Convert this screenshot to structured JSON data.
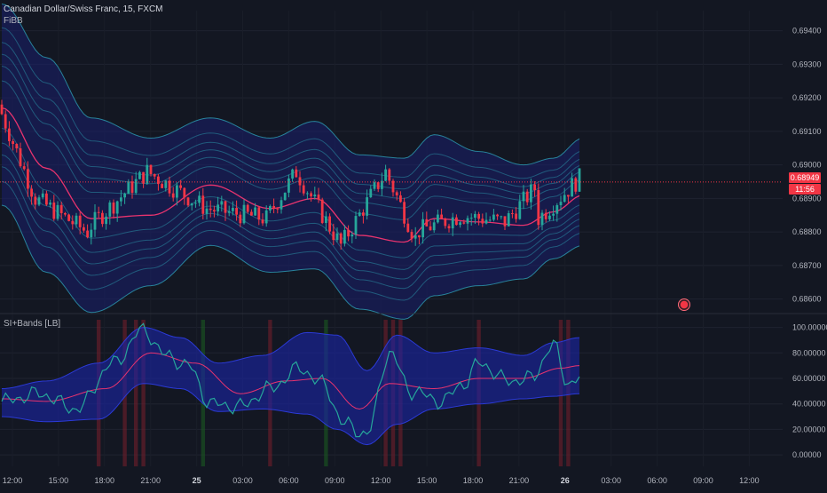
{
  "header": {
    "title": "Canadian Dollar/Swiss Franc, 15, FXCM",
    "indicator": "FiBB"
  },
  "oscillator": {
    "label": "SI+Bands [LB]"
  },
  "price_labels": {
    "last": "0.68949",
    "countdown": "11:56"
  },
  "colors": {
    "background": "#131722",
    "up": "#26a69a",
    "down": "#f23645",
    "band_line": "#2a8ea6",
    "basis": "#e8336e",
    "band_fill": "#1a1f6e",
    "osc_line": "#26a69a",
    "osc_ma": "#e8336e",
    "osc_band_fill": "#1a25a8"
  },
  "chart_data": [
    {
      "type": "candlestick",
      "title": "Canadian Dollar/Swiss Franc, 15, FXCM",
      "x_ticks": [
        "12:00",
        "15:00",
        "18:00",
        "21:00",
        "25",
        "03:00",
        "06:00",
        "09:00",
        "12:00",
        "15:00",
        "18:00",
        "21:00",
        "26",
        "03:00",
        "06:00",
        "09:00",
        "12:00"
      ],
      "y_ticks": [
        "0.69400",
        "0.69300",
        "0.69200",
        "0.69100",
        "0.69000",
        "0.68900",
        "0.68800",
        "0.68700",
        "0.68600"
      ],
      "ylim": [
        0.6857,
        0.6946
      ],
      "last_price": 0.68949,
      "fib_bands": {
        "anchors_x": [
          0,
          12,
          24,
          40,
          56,
          72,
          84,
          96,
          108,
          116,
          128,
          140,
          148,
          156
        ],
        "basis": [
          0.6918,
          0.69,
          0.6885,
          0.6886,
          0.6895,
          0.6888,
          0.6891,
          0.688,
          0.6878,
          0.6885,
          0.6884,
          0.6883,
          0.6887,
          0.6892
        ],
        "half_width": [
          0.003,
          0.0032,
          0.0029,
          0.0022,
          0.0019,
          0.002,
          0.0022,
          0.0023,
          0.0024,
          0.0024,
          0.002,
          0.0017,
          0.0015,
          0.0016
        ]
      },
      "segments": [
        {
          "start": 0,
          "count": 10,
          "from": 0.6918,
          "to": 0.689
        },
        {
          "start": 10,
          "count": 14,
          "from": 0.689,
          "to": 0.688
        },
        {
          "start": 24,
          "count": 16,
          "from": 0.6881,
          "to": 0.6898
        },
        {
          "start": 40,
          "count": 16,
          "from": 0.6898,
          "to": 0.6887
        },
        {
          "start": 56,
          "count": 16,
          "from": 0.6887,
          "to": 0.6884
        },
        {
          "start": 72,
          "count": 8,
          "from": 0.6884,
          "to": 0.6898
        },
        {
          "start": 80,
          "count": 12,
          "from": 0.6898,
          "to": 0.6876
        },
        {
          "start": 92,
          "count": 12,
          "from": 0.6876,
          "to": 0.6898
        },
        {
          "start": 104,
          "count": 8,
          "from": 0.6898,
          "to": 0.6878
        },
        {
          "start": 112,
          "count": 12,
          "from": 0.688,
          "to": 0.6885
        },
        {
          "start": 124,
          "count": 12,
          "from": 0.6885,
          "to": 0.6883
        },
        {
          "start": 136,
          "count": 8,
          "from": 0.6883,
          "to": 0.6893
        },
        {
          "start": 144,
          "count": 12,
          "from": 0.6883,
          "to": 0.6896
        }
      ]
    },
    {
      "type": "line",
      "title": "SI+Bands [LB]",
      "y_ticks": [
        "100.00000",
        "80.00000",
        "60.00000",
        "40.00000",
        "20.00000",
        "0.00000"
      ],
      "ylim": [
        -9,
        106
      ],
      "bars": 156,
      "line_anchors": {
        "x": [
          0,
          10,
          20,
          30,
          38,
          44,
          50,
          56,
          64,
          72,
          80,
          86,
          92,
          98,
          104,
          110,
          118,
          124,
          128,
          136,
          142,
          148,
          152,
          155
        ],
        "y": [
          42,
          48,
          36,
          72,
          98,
          78,
          70,
          40,
          38,
          52,
          68,
          56,
          24,
          16,
          80,
          50,
          42,
          56,
          72,
          58,
          60,
          86,
          56,
          60
        ]
      },
      "ma_anchors": {
        "x": [
          0,
          12,
          28,
          40,
          52,
          64,
          76,
          86,
          96,
          104,
          116,
          128,
          140,
          150,
          155
        ],
        "y": [
          44,
          42,
          52,
          80,
          72,
          48,
          58,
          60,
          36,
          56,
          52,
          60,
          60,
          68,
          70
        ]
      },
      "band_upper_anchors": {
        "x": [
          0,
          12,
          26,
          38,
          48,
          58,
          70,
          82,
          90,
          98,
          106,
          116,
          128,
          140,
          148,
          155
        ],
        "y": [
          52,
          58,
          72,
          100,
          92,
          72,
          78,
          96,
          94,
          66,
          94,
          80,
          84,
          78,
          88,
          92
        ]
      },
      "band_lower_anchors": {
        "x": [
          0,
          12,
          26,
          38,
          48,
          58,
          70,
          82,
          90,
          98,
          106,
          116,
          128,
          140,
          148,
          155
        ],
        "y": [
          30,
          26,
          28,
          56,
          52,
          34,
          36,
          32,
          20,
          8,
          24,
          36,
          40,
          44,
          46,
          48
        ]
      },
      "highlight_bars": [
        {
          "x": 26,
          "color": "red"
        },
        {
          "x": 33,
          "color": "red"
        },
        {
          "x": 36,
          "color": "red"
        },
        {
          "x": 38,
          "color": "red"
        },
        {
          "x": 54,
          "color": "green"
        },
        {
          "x": 72,
          "color": "red"
        },
        {
          "x": 87,
          "color": "green"
        },
        {
          "x": 103,
          "color": "red"
        },
        {
          "x": 105,
          "color": "red"
        },
        {
          "x": 107,
          "color": "red"
        },
        {
          "x": 128,
          "color": "red"
        },
        {
          "x": 150,
          "color": "red"
        },
        {
          "x": 152,
          "color": "red"
        }
      ]
    }
  ]
}
